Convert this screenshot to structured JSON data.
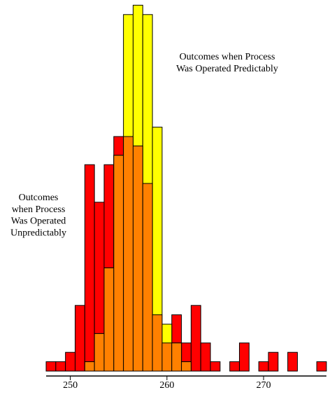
{
  "chart_data": {
    "type": "histogram",
    "bins": [
      247.5,
      248.5,
      249.5,
      250.5,
      251.5,
      252.5,
      253.5,
      254.5,
      255.5,
      256.5,
      257.5,
      258.5,
      259.5,
      260.5,
      261.5,
      262.5,
      263.5,
      264.5,
      265.5,
      266.5,
      267.5,
      268.5,
      269.5,
      270.5,
      271.5,
      272.5,
      273.5,
      274.5,
      275.5,
      276.5
    ],
    "series": [
      {
        "color": "#ff0000",
        "values": [
          1,
          1,
          2,
          7,
          22,
          18,
          22,
          25,
          25,
          24,
          20,
          6,
          3,
          6,
          3,
          7,
          3,
          1,
          0,
          1,
          3,
          0,
          1,
          2,
          0,
          2,
          0,
          0,
          1
        ]
      },
      {
        "color": "#ffff00",
        "values": [
          0,
          0,
          0,
          0,
          1,
          4,
          11,
          23,
          38,
          39,
          38,
          26,
          5,
          3,
          1,
          0,
          0,
          0,
          0,
          0,
          0,
          0,
          0,
          0,
          0,
          0,
          0,
          0,
          0
        ]
      }
    ],
    "overlap_color": "#ff8000",
    "xlim": [
      247.5,
      276.5
    ],
    "xticks": [
      250,
      260,
      270
    ],
    "ylim": [
      0,
      39.5
    ],
    "annotations": [
      {
        "lines": [
          "Outcomes when Process",
          "Was Operated Predictably"
        ]
      },
      {
        "lines": [
          "Outcomes",
          "when Process",
          "Was Operated",
          "Unpredictably"
        ]
      }
    ]
  }
}
